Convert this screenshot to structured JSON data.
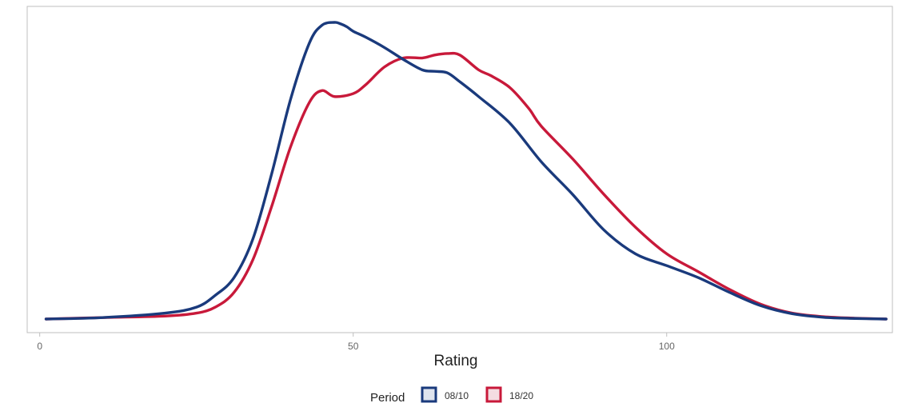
{
  "chart_data": {
    "type": "line",
    "title": "",
    "xlabel": "Rating",
    "ylabel": "",
    "xlim": [
      -2,
      136
    ],
    "ylim": [
      0,
      1
    ],
    "xticks": [
      0,
      50,
      100
    ],
    "grid": false,
    "legend": {
      "title": "Period",
      "position": "bottom"
    },
    "series": [
      {
        "name": "08/10",
        "color": "#1a3a7c",
        "x": [
          1,
          10,
          20,
          25,
          28,
          31,
          34,
          37,
          40,
          43,
          45,
          47,
          48,
          49,
          50,
          52,
          55,
          58,
          61,
          63,
          65,
          67,
          70,
          75,
          80,
          85,
          90,
          95,
          100,
          105,
          110,
          115,
          120,
          125,
          130,
          135
        ],
        "y": [
          0.0,
          0.005,
          0.02,
          0.04,
          0.08,
          0.14,
          0.27,
          0.49,
          0.74,
          0.93,
          0.99,
          1.0,
          0.995,
          0.985,
          0.97,
          0.95,
          0.915,
          0.875,
          0.84,
          0.835,
          0.83,
          0.8,
          0.75,
          0.66,
          0.53,
          0.42,
          0.3,
          0.22,
          0.18,
          0.14,
          0.09,
          0.045,
          0.018,
          0.006,
          0.002,
          0.0
        ]
      },
      {
        "name": "18/20",
        "color": "#c8193a",
        "x": [
          1,
          10,
          20,
          25,
          28,
          31,
          34,
          37,
          40,
          43,
          45,
          47,
          50,
          52,
          55,
          58,
          61,
          63,
          65,
          67,
          70,
          72,
          75,
          78,
          80,
          85,
          90,
          95,
          100,
          105,
          110,
          115,
          120,
          125,
          130,
          135
        ],
        "y": [
          0.0,
          0.005,
          0.01,
          0.02,
          0.04,
          0.09,
          0.2,
          0.38,
          0.58,
          0.73,
          0.77,
          0.75,
          0.76,
          0.79,
          0.85,
          0.88,
          0.88,
          0.89,
          0.895,
          0.89,
          0.84,
          0.82,
          0.78,
          0.71,
          0.65,
          0.54,
          0.42,
          0.31,
          0.22,
          0.16,
          0.1,
          0.05,
          0.02,
          0.008,
          0.003,
          0.0
        ]
      }
    ]
  }
}
